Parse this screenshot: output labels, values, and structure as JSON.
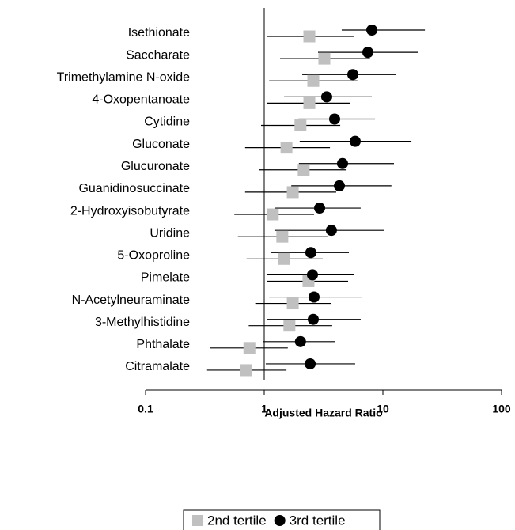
{
  "chart_data": {
    "type": "forest",
    "xlabel": "Adjusted Hazard Ratio",
    "xscale": "log",
    "xlim": [
      0.1,
      100
    ],
    "xticks": [
      0.1,
      1,
      10,
      100
    ],
    "reference_line": 1,
    "legend": "bottom",
    "categories": [
      "Isethionate",
      "Saccharate",
      "Trimethylamine N-oxide",
      "4-Oxopentanoate",
      "Cytidine",
      "Gluconate",
      "Glucuronate",
      "Guanidinosuccinate",
      "2-Hydroxyisobutyrate",
      "Uridine",
      "5-Oxoproline",
      "Pimelate",
      "N-Acetylneuraminate",
      "3-Methylhistidine",
      "Phthalate",
      "Citramalate"
    ],
    "series": [
      {
        "name": "2nd tertile",
        "color": "#c0c0c0",
        "marker": "square",
        "values": [
          2.4,
          3.21,
          2.59,
          2.4,
          2.02,
          1.54,
          2.15,
          1.74,
          1.18,
          1.42,
          1.47,
          2.36,
          1.74,
          1.63,
          0.75,
          0.7
        ],
        "lower": [
          1.05,
          1.36,
          1.1,
          1.05,
          0.94,
          0.69,
          0.91,
          0.69,
          0.56,
          0.6,
          0.71,
          1.06,
          0.84,
          0.74,
          0.35,
          0.33
        ],
        "upper": [
          5.66,
          7.8,
          6.1,
          5.3,
          4.37,
          3.58,
          4.94,
          4.04,
          2.63,
          3.41,
          3.11,
          5.09,
          3.68,
          3.74,
          1.58,
          1.54
        ]
      },
      {
        "name": "3rd tertile",
        "color": "#000000",
        "marker": "circle",
        "values": [
          8.07,
          7.47,
          5.58,
          3.36,
          3.92,
          5.84,
          4.57,
          4.3,
          2.93,
          3.68,
          2.47,
          2.55,
          2.63,
          2.59,
          2.02,
          2.44
        ],
        "lower": [
          4.5,
          2.84,
          2.09,
          1.47,
          1.94,
          1.99,
          1.96,
          1.69,
          1.24,
          1.22,
          1.13,
          1.06,
          1.1,
          1.06,
          0.97,
          1.03
        ],
        "upper": [
          22.6,
          19.7,
          12.8,
          8.07,
          8.58,
          17.4,
          12.4,
          11.8,
          6.5,
          10.3,
          5.17,
          5.75,
          6.6,
          6.5,
          3.98,
          5.84
        ]
      }
    ]
  }
}
